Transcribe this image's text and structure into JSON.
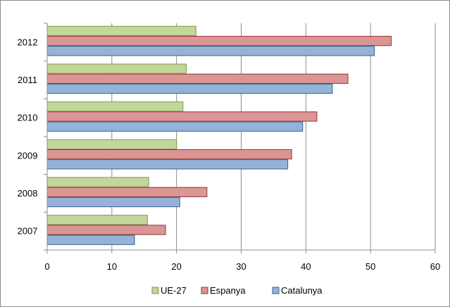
{
  "chart_data": {
    "type": "bar",
    "orientation": "horizontal",
    "categories": [
      "2007",
      "2008",
      "2009",
      "2010",
      "2011",
      "2012"
    ],
    "series": [
      {
        "name": "UE-27",
        "color": "#c3d69b",
        "stroke": "#7f9a48",
        "values": [
          15.5,
          15.7,
          20.0,
          21.0,
          21.5,
          23.0
        ]
      },
      {
        "name": "Espanya",
        "color": "#d99694",
        "stroke": "#953735",
        "values": [
          18.3,
          24.7,
          37.8,
          41.7,
          46.5,
          53.2
        ]
      },
      {
        "name": "Catalunya",
        "color": "#95b3d7",
        "stroke": "#376092",
        "values": [
          13.5,
          20.5,
          37.2,
          39.5,
          44.1,
          50.6
        ]
      }
    ],
    "xlim": [
      0,
      60
    ],
    "x_ticks": [
      "0",
      "10",
      "20",
      "30",
      "40",
      "50",
      "60"
    ],
    "grid": "vertical",
    "legend_position": "bottom",
    "title": "",
    "xlabel": "",
    "ylabel": ""
  }
}
